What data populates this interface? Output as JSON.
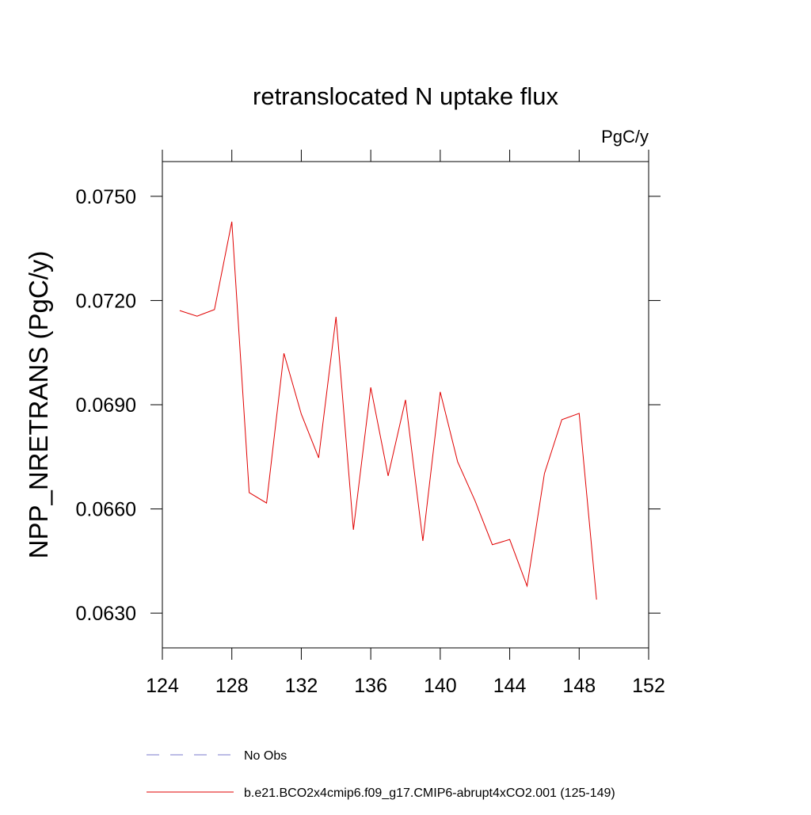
{
  "chart_data": {
    "type": "line",
    "title": "retranslocated N uptake flux",
    "units_label": "PgC/y",
    "y_label": "NPP_NRETRANS  (PgC/y)",
    "x": [
      125,
      126,
      127,
      128,
      129,
      130,
      131,
      132,
      133,
      134,
      135,
      136,
      137,
      138,
      139,
      140,
      141,
      142,
      143,
      144,
      145,
      146,
      147,
      148,
      149
    ],
    "series": [
      {
        "name": "b.e21.BCO2x4cmip6.f09_g17.CMIP6-abrupt4xCO2.001 (125-149)",
        "color": "#e00000",
        "values": [
          0.07171,
          0.07155,
          0.07174,
          0.07427,
          0.06647,
          0.06617,
          0.07048,
          0.06873,
          0.06747,
          0.07153,
          0.0654,
          0.0695,
          0.06695,
          0.06914,
          0.06508,
          0.06937,
          0.06736,
          0.06624,
          0.06497,
          0.06512,
          0.06378,
          0.06702,
          0.06857,
          0.06875,
          0.06339
        ]
      }
    ],
    "legend_entries": [
      {
        "name": "No Obs",
        "color": "#7a7acc",
        "dashed": true
      }
    ],
    "xlim": [
      124,
      152
    ],
    "xticks": [
      124,
      128,
      132,
      136,
      140,
      144,
      148,
      152
    ],
    "ylim": [
      0.062,
      0.076
    ],
    "yticks": [
      {
        "value": 0.063,
        "label": "0.0630"
      },
      {
        "value": 0.066,
        "label": "0.0660"
      },
      {
        "value": 0.069,
        "label": "0.0690"
      },
      {
        "value": 0.072,
        "label": "0.0720"
      },
      {
        "value": 0.075,
        "label": "0.0750"
      }
    ]
  }
}
